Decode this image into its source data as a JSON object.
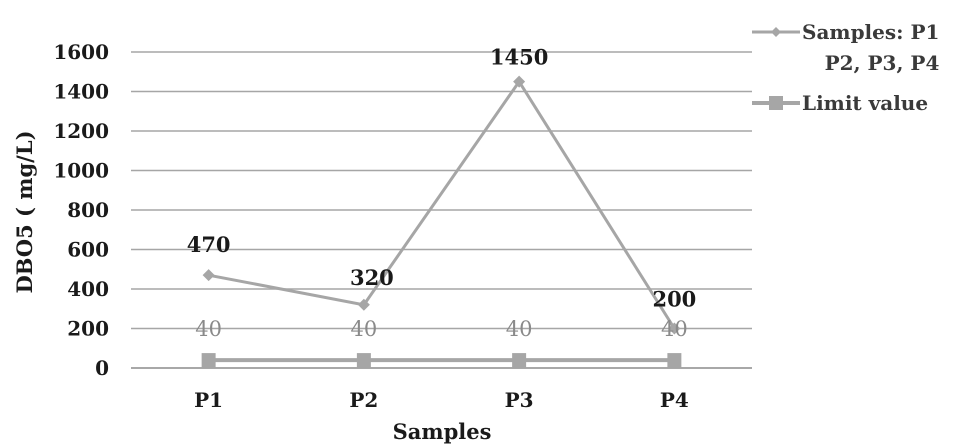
{
  "chart_data": {
    "type": "line",
    "title": "",
    "xlabel": "Samples",
    "ylabel": "DBO5 ( mg/L)",
    "categories": [
      "P1",
      "P2",
      "P3",
      "P4"
    ],
    "ylim": [
      0,
      1600
    ],
    "yticks": [
      0,
      200,
      400,
      600,
      800,
      1000,
      1200,
      1400,
      1600
    ],
    "ytick_labels": [
      "0",
      "200",
      "400",
      "600",
      "800",
      "1000",
      "1200",
      "1400",
      "1600"
    ],
    "grid": "horizontal",
    "legend_position": "top-right",
    "series": [
      {
        "name": "Samples: P1 P2, P3, P4",
        "legend_lines": [
          "Samples: P1",
          "P2, P3, P4"
        ],
        "values": [
          470,
          320,
          1450,
          200
        ],
        "data_labels": [
          "470",
          "320",
          "1450",
          "200"
        ],
        "marker": "diamond",
        "color": "#a6a6a6"
      },
      {
        "name": "Limit value",
        "legend_lines": [
          "Limit value"
        ],
        "values": [
          40,
          40,
          40,
          40
        ],
        "data_labels": [
          "40",
          "40",
          "40",
          "40"
        ],
        "marker": "square",
        "color": "#a6a6a6"
      }
    ]
  }
}
